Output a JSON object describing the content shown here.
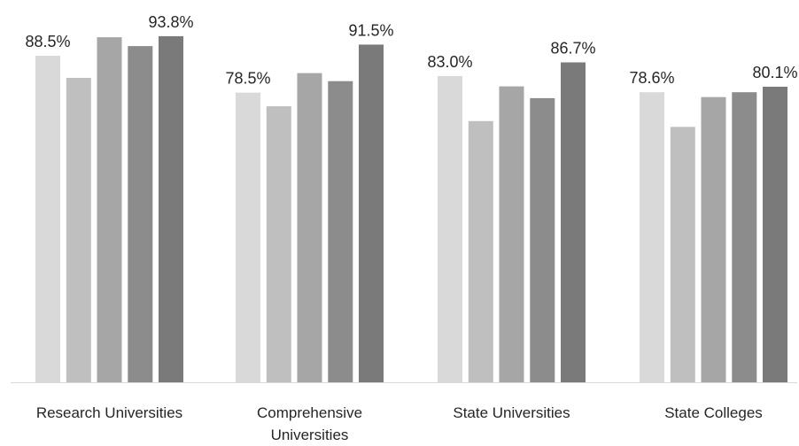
{
  "chart_data": {
    "type": "bar",
    "title": "",
    "xlabel": "",
    "ylabel": "",
    "categories": [
      [
        "Research Universities"
      ],
      [
        "Comprehensive",
        "Universities"
      ],
      [
        "State Universities"
      ],
      [
        "State Colleges"
      ]
    ],
    "series": [
      {
        "color": "#d9d9d9",
        "values": [
          88.5,
          78.5,
          83.0,
          78.6
        ]
      },
      {
        "color": "#bfbfbf",
        "values": [
          82.5,
          74.8,
          70.8,
          69.2
        ]
      },
      {
        "color": "#a6a6a6",
        "values": [
          93.5,
          83.8,
          80.2,
          77.3
        ]
      },
      {
        "color": "#8c8c8c",
        "values": [
          91.1,
          81.6,
          77.0,
          78.6
        ]
      },
      {
        "color": "#7a7a7a",
        "values": [
          93.8,
          91.5,
          86.7,
          80.1
        ]
      }
    ],
    "data_labels": [
      {
        "category": 0,
        "series": 0,
        "text": "88.5%"
      },
      {
        "category": 0,
        "series": 4,
        "text": "93.8%"
      },
      {
        "category": 1,
        "series": 0,
        "text": "78.5%"
      },
      {
        "category": 1,
        "series": 4,
        "text": "91.5%"
      },
      {
        "category": 2,
        "series": 0,
        "text": "83.0%"
      },
      {
        "category": 2,
        "series": 4,
        "text": "86.7%"
      },
      {
        "category": 3,
        "series": 0,
        "text": "78.6%"
      },
      {
        "category": 3,
        "series": 4,
        "text": "80.1%"
      }
    ],
    "ylim": [
      0,
      100
    ],
    "grid": false,
    "legend": "none",
    "axis_color": "#d9d9d9"
  }
}
